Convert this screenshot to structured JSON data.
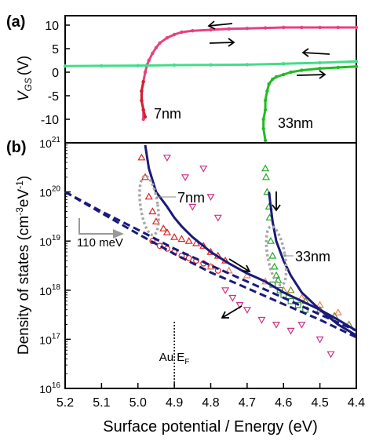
{
  "chart_data": [
    {
      "panel": "(a)",
      "type": "scatter",
      "ylabel": "V",
      "ylabel_sub": "GS",
      "ylabel_unit": "(V)",
      "xlim": [
        5.2,
        4.4
      ],
      "ylim": [
        -15,
        12
      ],
      "yticks": [
        10,
        5,
        0,
        -5,
        -10
      ],
      "grid": false,
      "annotations": [
        "7nm",
        "33nm"
      ],
      "series": [
        {
          "color": "#e8407f",
          "x": [
            4.4,
            4.45,
            4.5,
            4.55,
            4.6,
            4.65,
            4.7,
            4.75,
            4.8,
            4.85,
            4.88,
            4.9,
            4.92,
            4.94,
            4.95,
            4.96,
            4.97,
            4.975,
            4.98,
            4.985,
            4.99,
            4.99,
            4.985,
            4.985
          ],
          "y": [
            9.5,
            9.5,
            9.5,
            9.5,
            9.5,
            9.4,
            9.3,
            9.2,
            9.0,
            8.8,
            8.5,
            8.0,
            7.3,
            6.2,
            5.2,
            4.0,
            2.5,
            1.5,
            0.0,
            -2.0,
            -4.0,
            -6.0,
            -8.0,
            -10.0
          ]
        },
        {
          "color": "#d02030",
          "x": [
            4.985,
            4.99,
            4.99,
            4.985,
            4.98
          ],
          "y": [
            -2.0,
            -4.0,
            -6.0,
            -8.0,
            -9.5
          ]
        },
        {
          "color": "#44dd88",
          "x": [
            5.2,
            5.1,
            5.0,
            4.9,
            4.8,
            4.7,
            4.6,
            4.5,
            4.4
          ],
          "y": [
            1.3,
            1.35,
            1.4,
            1.5,
            1.55,
            1.6,
            1.8,
            2.0,
            2.3
          ]
        },
        {
          "color": "#22bb22",
          "x": [
            4.4,
            4.45,
            4.5,
            4.55,
            4.58,
            4.6,
            4.62,
            4.63,
            4.64,
            4.645,
            4.65,
            4.65,
            4.655,
            4.655,
            4.65
          ],
          "y": [
            1.2,
            1.0,
            0.8,
            0.4,
            0.0,
            -0.5,
            -1.0,
            -1.5,
            -2.5,
            -4.0,
            -6.0,
            -8.0,
            -10.0,
            -12.0,
            -14.5
          ]
        }
      ]
    },
    {
      "panel": "(b)",
      "type": "scatter",
      "xlabel": "Surface potential / Energy (eV)",
      "ylabel": "Density of states (cm",
      "ylabel_sup1": "-3",
      "ylabel_mid": "eV",
      "ylabel_sup2": "-1",
      "ylabel_end": ")",
      "xlim": [
        5.2,
        4.4
      ],
      "xticks": [
        "5.2",
        "5.1",
        "5.0",
        "4.9",
        "4.8",
        "4.7",
        "4.6",
        "4.5",
        "4.4"
      ],
      "y_scale": "log",
      "ylim": [
        1e+16,
        1e+21
      ],
      "yticks": [
        {
          "base": "10",
          "exp": "16"
        },
        {
          "base": "10",
          "exp": "17"
        },
        {
          "base": "10",
          "exp": "18"
        },
        {
          "base": "10",
          "exp": "19"
        },
        {
          "base": "10",
          "exp": "20"
        },
        {
          "base": "10",
          "exp": "21"
        }
      ],
      "grid": false,
      "annotations": {
        "label_7nm": "7nm",
        "label_33nm": "33nm",
        "shift": "110 meV",
        "au_ef_main": "Au E",
        "au_ef_sub": "F",
        "au_ef_x": 4.9
      },
      "fit_lines": [
        {
          "style": "solid",
          "color": "#1a1a7a",
          "x": [
            4.98,
            4.97,
            4.95,
            4.92,
            4.9,
            4.88,
            4.85,
            4.82,
            4.8,
            4.75,
            4.7,
            4.65,
            4.6,
            4.55,
            4.5,
            4.45,
            4.4
          ],
          "y": [
            9e+20,
            3e+20,
            1e+20,
            5e+19,
            3e+19,
            2e+19,
            1.2e+19,
            8e+18,
            6e+18,
            3.5e+18,
            2.2e+18,
            1.5e+18,
            9e+17,
            6e+17,
            4e+17,
            2.5e+17,
            1.5e+17
          ]
        },
        {
          "style": "solid",
          "color": "#1a1a7a",
          "x": [
            4.64,
            4.635,
            4.63,
            4.62,
            4.6,
            4.58,
            4.55,
            4.5,
            4.45,
            4.4
          ],
          "y": [
            1e+20,
            5e+19,
            2.5e+19,
            1e+19,
            4e+18,
            2e+18,
            9e+17,
            4e+17,
            2e+17,
            1.2e+17
          ]
        },
        {
          "style": "dashed",
          "color": "#1a1a7a",
          "x": [
            5.2,
            5.1,
            5.0,
            4.9,
            4.8,
            4.7,
            4.6,
            4.5,
            4.4
          ],
          "y": [
            1e+20,
            4e+19,
            1.7e+19,
            7e+18,
            3.2e+18,
            1.5e+18,
            7e+17,
            3.2e+17,
            1.5e+17
          ]
        },
        {
          "style": "dashed",
          "color": "#1a1a7a",
          "x": [
            5.2,
            5.1,
            5.0,
            4.9,
            4.8,
            4.7,
            4.6,
            4.5,
            4.4
          ],
          "y": [
            1e+20,
            3.7e+19,
            1.4e+19,
            5.5e+18,
            2.3e+18,
            1.1e+18,
            5.2e+17,
            2.5e+17,
            1.1e+17
          ]
        }
      ],
      "series": [
        {
          "color": "#e02020",
          "marker": "triangle-up",
          "x": [
            4.99,
            4.98,
            4.97,
            4.96,
            4.95,
            4.93,
            4.92,
            4.9,
            4.88,
            4.86,
            4.84,
            4.82,
            4.8,
            4.78,
            4.76
          ],
          "y": [
            5e+20,
            2e+20,
            8e+19,
            4e+19,
            2.5e+19,
            1.8e+19,
            1.5e+19,
            1.2e+19,
            1.1e+19,
            1e+19,
            9e+18,
            8e+18,
            6e+18,
            5e+18,
            4e+18
          ]
        },
        {
          "color": "#e02020",
          "marker": "circle",
          "x": [
            4.96,
            4.94,
            4.92,
            4.9,
            4.88,
            4.86,
            4.84,
            4.82,
            4.8,
            4.78
          ],
          "y": [
            1e+19,
            8e+18,
            7e+18,
            6e+18,
            5e+18,
            4.5e+18,
            4e+18,
            3.5e+18,
            3e+18,
            2.5e+18
          ]
        },
        {
          "color": "#cc3388",
          "marker": "triangle-down",
          "x": [
            4.92,
            4.87,
            4.85,
            4.82,
            4.8,
            4.78,
            4.76,
            4.74,
            4.72,
            4.7,
            4.66,
            4.62,
            4.58,
            4.55,
            4.5,
            4.47
          ],
          "y": [
            5e+20,
            2e+20,
            5e+19,
            3e+20,
            8e+19,
            3e+19,
            1e+18,
            7e+17,
            5e+17,
            4e+17,
            2.5e+17,
            2e+17,
            1.5e+17,
            2e+17,
            1e+17,
            5e+16
          ]
        },
        {
          "color": "#f08060",
          "marker": "triangle-up",
          "x": [
            4.8,
            4.75,
            4.7,
            4.65,
            4.6,
            4.55,
            4.5,
            4.45
          ],
          "y": [
            3e+18,
            2.5e+18,
            2e+18,
            1.5e+18,
            1e+18,
            7e+17,
            5e+17,
            3.5e+17
          ]
        },
        {
          "color": "#22aa22",
          "marker": "triangle-up",
          "x": [
            4.65,
            4.648,
            4.645,
            4.64,
            4.638,
            4.635,
            4.63,
            4.625,
            4.62,
            4.615
          ],
          "y": [
            3e+20,
            2e+20,
            1e+20,
            5e+19,
            3e+19,
            1e+19,
            5e+18,
            3e+18,
            2e+18,
            1.6e+18
          ]
        },
        {
          "color": "#339933",
          "marker": "square",
          "x": [
            4.63,
            4.61,
            4.6,
            4.58,
            4.56,
            4.54
          ],
          "y": [
            1.3e+18,
            1e+18,
            8e+17,
            6e+17,
            5e+17,
            4e+17
          ]
        },
        {
          "color": "#7a8a20",
          "marker": "triangle-up",
          "x": [
            4.58,
            4.54,
            4.5,
            4.46,
            4.42
          ],
          "y": [
            1e+18,
            6e+17,
            4e+17,
            3e+17,
            2e+17
          ]
        }
      ]
    }
  ]
}
